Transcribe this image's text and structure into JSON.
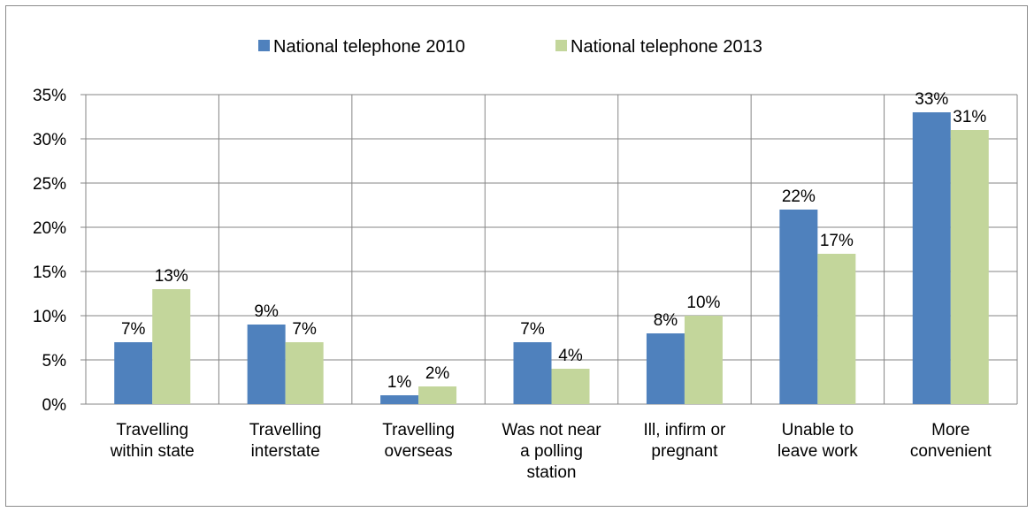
{
  "chart_data": {
    "type": "bar",
    "categories": [
      [
        "Travelling",
        "within state"
      ],
      [
        "Travelling",
        "interstate"
      ],
      [
        "Travelling",
        "overseas"
      ],
      [
        "Was not near",
        "a polling",
        "station"
      ],
      [
        "Ill, infirm or",
        "pregnant"
      ],
      [
        "Unable to",
        "leave work"
      ],
      [
        "More",
        "convenient"
      ]
    ],
    "series": [
      {
        "name": "National telephone 2010",
        "color": "#4f81bd",
        "values": [
          7,
          9,
          1,
          7,
          8,
          22,
          33
        ],
        "labels": [
          "7%",
          "9%",
          "1%",
          "7%",
          "8%",
          "22%",
          "33%"
        ]
      },
      {
        "name": "National telephone 2013",
        "color": "#c3d69b",
        "values": [
          13,
          7,
          2,
          4,
          10,
          17,
          31
        ],
        "labels": [
          "13%",
          "7%",
          "2%",
          "4%",
          "10%",
          "17%",
          "31%"
        ]
      }
    ],
    "ylim": [
      0,
      35
    ],
    "yticks": [
      "0%",
      "5%",
      "10%",
      "15%",
      "20%",
      "25%",
      "30%",
      "35%"
    ],
    "grid": true,
    "legend": "top-center",
    "title": "",
    "xlabel": "",
    "ylabel": ""
  }
}
